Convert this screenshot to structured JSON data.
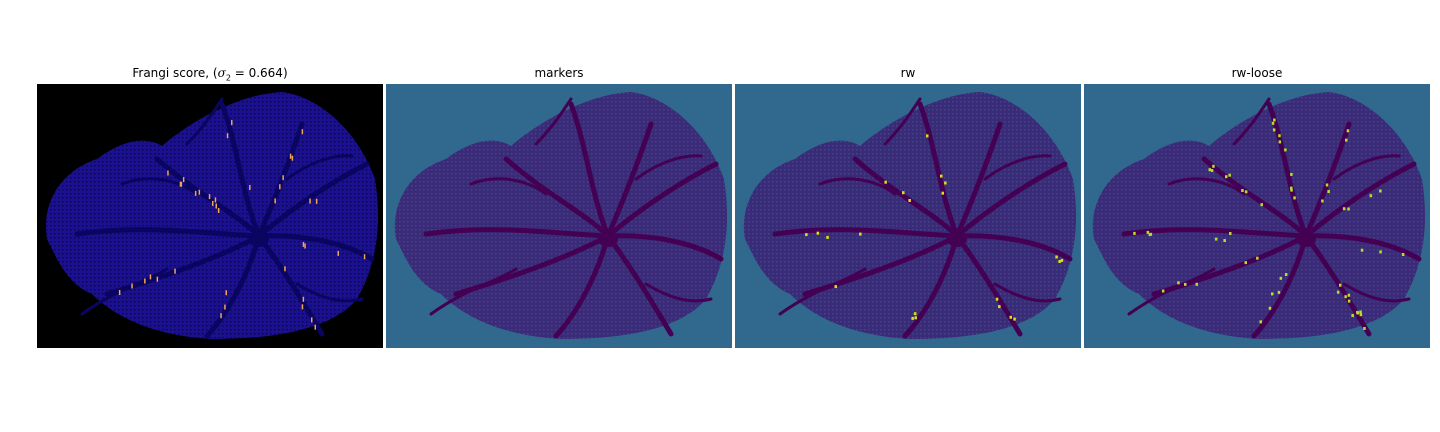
{
  "panels": [
    {
      "id": "frangi",
      "title_prefix": "Frangi score, (",
      "title_sigma": "σ",
      "title_sub": "2",
      "title_suffix": " = 0.664)",
      "background": "#000000",
      "blob": "#1a1090",
      "vessel": "#0a0560",
      "highlight": "#f2a45a"
    },
    {
      "id": "markers",
      "title": "markers",
      "background": "#31688e",
      "blob": "#3b2a78",
      "vessel": "#440154",
      "highlight": ""
    },
    {
      "id": "rw",
      "title": "rw",
      "background": "#31688e",
      "blob": "#3b2a78",
      "vessel": "#440154",
      "highlight": "#d8e219"
    },
    {
      "id": "rw-loose",
      "title": "rw-loose",
      "background": "#31688e",
      "blob": "#3b2a78",
      "vessel": "#440154",
      "highlight": "#b5de2b"
    }
  ]
}
